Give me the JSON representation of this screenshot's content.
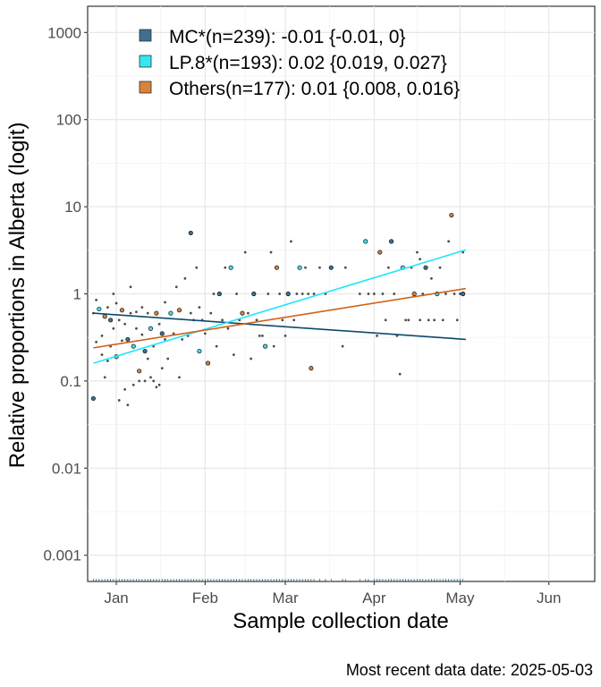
{
  "chart_data": {
    "type": "scatter",
    "title": "",
    "xlabel": "Sample collection date",
    "ylabel": "Relative proportions in Alberta (logit)",
    "caption": "Most recent data date: 2025-05-03",
    "y_scale": "log10",
    "ylim": [
      0.0005,
      2000
    ],
    "xlim": [
      "2024-12-22",
      "2025-06-17"
    ],
    "grid": true,
    "legend_position": "top-left",
    "x_ticks": [
      {
        "label": "Jan",
        "date": "2025-01-01"
      },
      {
        "label": "Feb",
        "date": "2025-02-01"
      },
      {
        "label": "Mar",
        "date": "2025-03-01"
      },
      {
        "label": "Apr",
        "date": "2025-04-01"
      },
      {
        "label": "May",
        "date": "2025-05-01"
      },
      {
        "label": "Jun",
        "date": "2025-06-01"
      }
    ],
    "y_ticks": [
      {
        "label": "0.001",
        "value": 0.001
      },
      {
        "label": "0.01",
        "value": 0.01
      },
      {
        "label": "0.1",
        "value": 0.1
      },
      {
        "label": "1",
        "value": 1
      },
      {
        "label": "10",
        "value": 10
      },
      {
        "label": "100",
        "value": 100
      },
      {
        "label": "1000",
        "value": 1000
      }
    ],
    "series": [
      {
        "name": "MC*(n=239): -0.01 {-0.01, 0}",
        "color": "#3f6f8c",
        "line_color": "#0d4a6b",
        "fit": [
          {
            "x": "2024-12-24",
            "y": 0.6
          },
          {
            "x": "2025-05-03",
            "y": 0.3
          }
        ]
      },
      {
        "name": "LP.8*(n=193): 0.02 {0.019, 0.027}",
        "color": "#33e8f0",
        "line_color": "#1ee6ff",
        "fit": [
          {
            "x": "2024-12-24",
            "y": 0.16
          },
          {
            "x": "2025-05-03",
            "y": 3.2
          }
        ]
      },
      {
        "name": "Others(n=177): 0.01 {0.008, 0.016}",
        "color": "#d9823b",
        "line_color": "#d2601a",
        "fit": [
          {
            "x": "2024-12-24",
            "y": 0.24
          },
          {
            "x": "2025-05-03",
            "y": 1.15
          }
        ]
      }
    ],
    "points": [
      {
        "x": "2024-12-24",
        "y": 0.063
      },
      {
        "x": "2024-12-24",
        "y": 0.6
      },
      {
        "x": "2024-12-25",
        "y": 0.85
      },
      {
        "x": "2024-12-25",
        "y": 0.28
      },
      {
        "x": "2024-12-26",
        "y": 0.67
      },
      {
        "x": "2024-12-27",
        "y": 0.2
      },
      {
        "x": "2024-12-27",
        "y": 0.33
      },
      {
        "x": "2024-12-28",
        "y": 0.11
      },
      {
        "x": "2024-12-28",
        "y": 0.55
      },
      {
        "x": "2024-12-29",
        "y": 0.7
      },
      {
        "x": "2024-12-29",
        "y": 0.17
      },
      {
        "x": "2024-12-30",
        "y": 0.25
      },
      {
        "x": "2024-12-30",
        "y": 0.5
      },
      {
        "x": "2024-12-31",
        "y": 1.0
      },
      {
        "x": "2024-12-31",
        "y": 0.4
      },
      {
        "x": "2025-01-01",
        "y": 0.78
      },
      {
        "x": "2025-01-01",
        "y": 0.19
      },
      {
        "x": "2025-01-02",
        "y": 0.06
      },
      {
        "x": "2025-01-02",
        "y": 0.5
      },
      {
        "x": "2025-01-03",
        "y": 0.29
      },
      {
        "x": "2025-01-03",
        "y": 0.65
      },
      {
        "x": "2025-01-04",
        "y": 0.08
      },
      {
        "x": "2025-01-04",
        "y": 0.45
      },
      {
        "x": "2025-01-05",
        "y": 0.053
      },
      {
        "x": "2025-01-05",
        "y": 0.3
      },
      {
        "x": "2025-01-06",
        "y": 1.2
      },
      {
        "x": "2025-01-06",
        "y": 0.6
      },
      {
        "x": "2025-01-07",
        "y": 0.09
      },
      {
        "x": "2025-01-07",
        "y": 0.25
      },
      {
        "x": "2025-01-08",
        "y": 0.62
      },
      {
        "x": "2025-01-08",
        "y": 0.4
      },
      {
        "x": "2025-01-09",
        "y": 0.1
      },
      {
        "x": "2025-01-09",
        "y": 0.13
      },
      {
        "x": "2025-01-10",
        "y": 0.7
      },
      {
        "x": "2025-01-10",
        "y": 0.34
      },
      {
        "x": "2025-01-11",
        "y": 0.1
      },
      {
        "x": "2025-01-11",
        "y": 0.22
      },
      {
        "x": "2025-01-12",
        "y": 0.6
      },
      {
        "x": "2025-01-12",
        "y": 0.18
      },
      {
        "x": "2025-01-13",
        "y": 0.11
      },
      {
        "x": "2025-01-13",
        "y": 0.4
      },
      {
        "x": "2025-01-14",
        "y": 0.25
      },
      {
        "x": "2025-01-14",
        "y": 0.1
      },
      {
        "x": "2025-01-15",
        "y": 0.085
      },
      {
        "x": "2025-01-15",
        "y": 0.6
      },
      {
        "x": "2025-01-16",
        "y": 0.45
      },
      {
        "x": "2025-01-16",
        "y": 0.09
      },
      {
        "x": "2025-01-17",
        "y": 0.14
      },
      {
        "x": "2025-01-17",
        "y": 0.35
      },
      {
        "x": "2025-01-18",
        "y": 0.8
      },
      {
        "x": "2025-01-18",
        "y": 0.3
      },
      {
        "x": "2025-01-19",
        "y": 0.18
      },
      {
        "x": "2025-01-20",
        "y": 0.6
      },
      {
        "x": "2025-01-21",
        "y": 0.35
      },
      {
        "x": "2025-01-22",
        "y": 1.2
      },
      {
        "x": "2025-01-23",
        "y": 0.11
      },
      {
        "x": "2025-01-23",
        "y": 0.65
      },
      {
        "x": "2025-01-24",
        "y": 0.3
      },
      {
        "x": "2025-01-25",
        "y": 1.5
      },
      {
        "x": "2025-01-26",
        "y": 0.33
      },
      {
        "x": "2025-01-27",
        "y": 5.0
      },
      {
        "x": "2025-01-27",
        "y": 0.6
      },
      {
        "x": "2025-01-28",
        "y": 0.5
      },
      {
        "x": "2025-01-29",
        "y": 2.0
      },
      {
        "x": "2025-01-30",
        "y": 0.22
      },
      {
        "x": "2025-01-30",
        "y": 0.7
      },
      {
        "x": "2025-01-31",
        "y": 0.5
      },
      {
        "x": "2025-02-01",
        "y": 0.35
      },
      {
        "x": "2025-02-02",
        "y": 0.16
      },
      {
        "x": "2025-02-03",
        "y": 0.6
      },
      {
        "x": "2025-02-04",
        "y": 1.0
      },
      {
        "x": "2025-02-05",
        "y": 0.25
      },
      {
        "x": "2025-02-06",
        "y": 1.0
      },
      {
        "x": "2025-02-07",
        "y": 0.5
      },
      {
        "x": "2025-02-08",
        "y": 2.0
      },
      {
        "x": "2025-02-09",
        "y": 0.4
      },
      {
        "x": "2025-02-10",
        "y": 2.0
      },
      {
        "x": "2025-02-11",
        "y": 0.2
      },
      {
        "x": "2025-02-12",
        "y": 1.0
      },
      {
        "x": "2025-02-13",
        "y": 0.5
      },
      {
        "x": "2025-02-14",
        "y": 0.6
      },
      {
        "x": "2025-02-15",
        "y": 3.0
      },
      {
        "x": "2025-02-16",
        "y": 0.6
      },
      {
        "x": "2025-02-17",
        "y": 0.18
      },
      {
        "x": "2025-02-18",
        "y": 1.0
      },
      {
        "x": "2025-02-19",
        "y": 0.5
      },
      {
        "x": "2025-02-20",
        "y": 0.33
      },
      {
        "x": "2025-02-21",
        "y": 0.33
      },
      {
        "x": "2025-02-22",
        "y": 0.25
      },
      {
        "x": "2025-02-23",
        "y": 1.0
      },
      {
        "x": "2025-02-24",
        "y": 3.0
      },
      {
        "x": "2025-02-25",
        "y": 0.25
      },
      {
        "x": "2025-02-26",
        "y": 2.0
      },
      {
        "x": "2025-02-27",
        "y": 1.0
      },
      {
        "x": "2025-02-28",
        "y": 0.5
      },
      {
        "x": "2025-03-01",
        "y": 0.33
      },
      {
        "x": "2025-03-02",
        "y": 1.0
      },
      {
        "x": "2025-03-03",
        "y": 4.0
      },
      {
        "x": "2025-03-04",
        "y": 0.5
      },
      {
        "x": "2025-03-05",
        "y": 1.0
      },
      {
        "x": "2025-03-06",
        "y": 2.0
      },
      {
        "x": "2025-03-07",
        "y": 1.0
      },
      {
        "x": "2025-03-08",
        "y": 2.0
      },
      {
        "x": "2025-03-09",
        "y": 1.0
      },
      {
        "x": "2025-03-10",
        "y": 0.14
      },
      {
        "x": "2025-03-11",
        "y": 1.0
      },
      {
        "x": "2025-03-13",
        "y": 2.0
      },
      {
        "x": "2025-03-15",
        "y": 1.0
      },
      {
        "x": "2025-03-17",
        "y": 2.0
      },
      {
        "x": "2025-03-21",
        "y": 0.25
      },
      {
        "x": "2025-03-22",
        "y": 2.0
      },
      {
        "x": "2025-03-27",
        "y": 1.0
      },
      {
        "x": "2025-03-29",
        "y": 4.0
      },
      {
        "x": "2025-03-30",
        "y": 1.0
      },
      {
        "x": "2025-04-01",
        "y": 1.0
      },
      {
        "x": "2025-04-02",
        "y": 0.33
      },
      {
        "x": "2025-04-03",
        "y": 3.0
      },
      {
        "x": "2025-04-04",
        "y": 1.0
      },
      {
        "x": "2025-04-05",
        "y": 0.5
      },
      {
        "x": "2025-04-06",
        "y": 2.0
      },
      {
        "x": "2025-04-07",
        "y": 4.0
      },
      {
        "x": "2025-04-08",
        "y": 1.0
      },
      {
        "x": "2025-04-09",
        "y": 0.33
      },
      {
        "x": "2025-04-10",
        "y": 0.12
      },
      {
        "x": "2025-04-11",
        "y": 2.0
      },
      {
        "x": "2025-04-12",
        "y": 0.5
      },
      {
        "x": "2025-04-13",
        "y": 0.5
      },
      {
        "x": "2025-04-14",
        "y": 2.0
      },
      {
        "x": "2025-04-15",
        "y": 1.0
      },
      {
        "x": "2025-04-16",
        "y": 3.0
      },
      {
        "x": "2025-04-17",
        "y": 0.5
      },
      {
        "x": "2025-04-18",
        "y": 1.0
      },
      {
        "x": "2025-04-19",
        "y": 2.0
      },
      {
        "x": "2025-04-20",
        "y": 0.5
      },
      {
        "x": "2025-04-21",
        "y": 1.5
      },
      {
        "x": "2025-04-22",
        "y": 0.5
      },
      {
        "x": "2025-04-23",
        "y": 1.0
      },
      {
        "x": "2025-04-24",
        "y": 2.0
      },
      {
        "x": "2025-04-25",
        "y": 0.5
      },
      {
        "x": "2025-04-26",
        "y": 1.0
      },
      {
        "x": "2025-04-28",
        "y": 8.0
      },
      {
        "x": "2025-04-29",
        "y": 1.0
      },
      {
        "x": "2025-04-30",
        "y": 0.5
      },
      {
        "x": "2025-05-01",
        "y": 1.0
      },
      {
        "x": "2025-05-02",
        "y": 1.0
      },
      {
        "x": "2025-05-02",
        "y": 3.0
      },
      {
        "x": "2025-04-27",
        "y": 4.0
      },
      {
        "x": "2025-04-17",
        "y": 2.5
      }
    ]
  }
}
